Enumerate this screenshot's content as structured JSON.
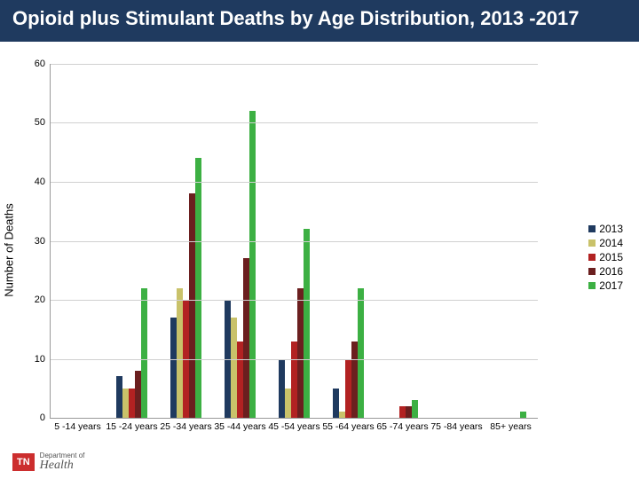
{
  "title": "Opioid plus Stimulant Deaths by Age Distribution, 2013 -2017",
  "ylabel": "Number of Deaths",
  "chart": {
    "type": "bar",
    "ymin": 0,
    "ymax": 60,
    "ytick_step": 10,
    "grid_color": "#d0d0d0",
    "categories": [
      "5 -14 years",
      "15 -24 years",
      "25 -34 years",
      "35 -44 years",
      "45 -54 years",
      "55 -64 years",
      "65 -74 years",
      "75 -84 years",
      "85+ years"
    ],
    "series": [
      {
        "name": "2013",
        "color": "#1f3a5f",
        "values": [
          0,
          7,
          17,
          20,
          10,
          5,
          0,
          0,
          0
        ]
      },
      {
        "name": "2014",
        "color": "#c9c26a",
        "values": [
          0,
          5,
          22,
          17,
          5,
          1,
          0,
          0,
          0
        ]
      },
      {
        "name": "2015",
        "color": "#b22222",
        "values": [
          0,
          5,
          20,
          13,
          13,
          10,
          2,
          0,
          0
        ]
      },
      {
        "name": "2016",
        "color": "#6b1f1f",
        "values": [
          0,
          8,
          38,
          27,
          22,
          13,
          2,
          0,
          0
        ]
      },
      {
        "name": "2017",
        "color": "#3cb043",
        "values": [
          0,
          22,
          44,
          52,
          32,
          22,
          3,
          0,
          1
        ]
      }
    ],
    "bar_width_pct": 1.3,
    "group_gap_pct": 11.1
  },
  "legend_title": null,
  "logo": {
    "badge": "TN",
    "dept": "Department of",
    "health": "Health"
  }
}
